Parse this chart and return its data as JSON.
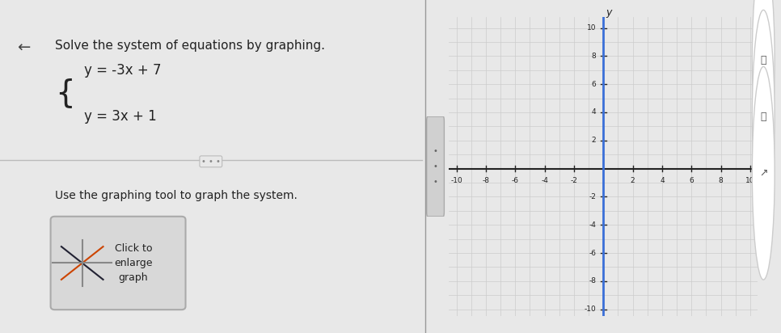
{
  "title_text": "Solve the system of equations by graphing.",
  "eq1": "y = -3x + 7",
  "eq2": "y = 3x + 1",
  "instruction": "Use the graphing tool to graph the system.",
  "button_text": "Click to\nenlarge\ngraph",
  "bg_color_left": "#e8e8e8",
  "bg_color_right": "#f0f0f0",
  "grid_color": "#aaaaaa",
  "axis_color": "#222222",
  "highlight_line_color": "#3a6fd8",
  "xlim": [
    -10,
    10
  ],
  "ylim": [
    -10,
    10
  ],
  "xticks": [
    -10,
    -8,
    -6,
    -4,
    -2,
    2,
    4,
    6,
    8,
    10
  ],
  "yticks": [
    -10,
    -8,
    -6,
    -4,
    -2,
    2,
    4,
    6,
    8,
    10
  ],
  "title_fontsize": 11,
  "eq_fontsize": 12,
  "instruction_fontsize": 10
}
